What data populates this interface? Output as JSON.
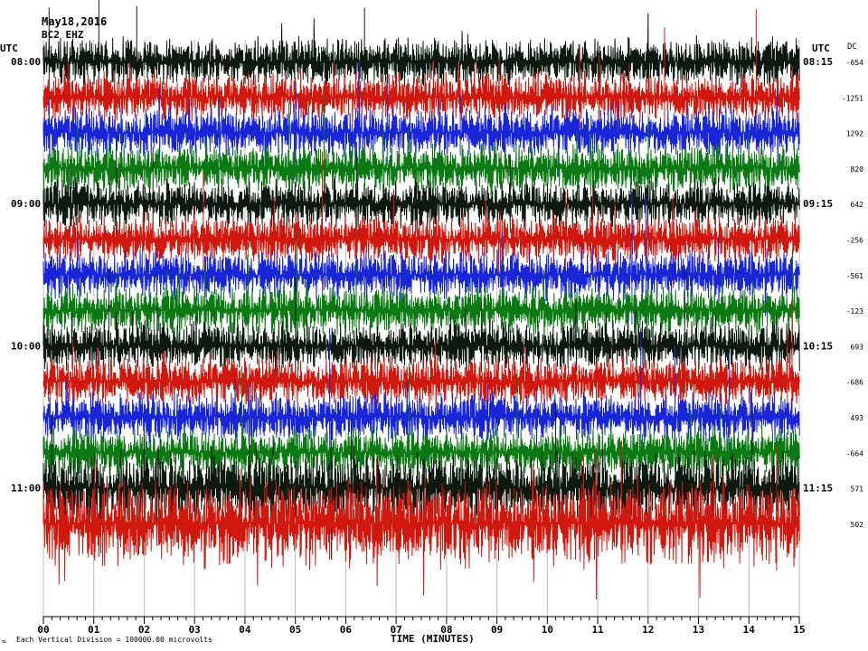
{
  "header": {
    "date": "May18,2016",
    "station_code": "BC2 EHZ",
    "left_timezone": "UTC",
    "right_timezone": "UTC",
    "dc_label": "DC"
  },
  "footer": {
    "scale_note": "Each Vertical Division = 100000.00 microvolts",
    "corner_mark": "≈"
  },
  "chart_data": {
    "type": "line",
    "title": "",
    "xlabel": "TIME (MINUTES)",
    "ylabel": "",
    "xlim": [
      0,
      15
    ],
    "x_ticks": [
      "00",
      "01",
      "02",
      "03",
      "04",
      "05",
      "06",
      "07",
      "08",
      "09",
      "10",
      "11",
      "12",
      "13",
      "14",
      "15"
    ],
    "trace_colors": [
      "#0e1a10",
      "#d0180f",
      "#1826d8",
      "#0b7a12"
    ],
    "grid": "vertical minute lines",
    "rows": [
      {
        "left_label": "08:00",
        "right_label": "08:15",
        "dc": "-654"
      },
      {
        "left_label": "",
        "right_label": "",
        "dc": "-1251"
      },
      {
        "left_label": "",
        "right_label": "",
        "dc": "1292"
      },
      {
        "left_label": "",
        "right_label": "",
        "dc": "820"
      },
      {
        "left_label": "09:00",
        "right_label": "09:15",
        "dc": "642"
      },
      {
        "left_label": "",
        "right_label": "",
        "dc": "-256"
      },
      {
        "left_label": "",
        "right_label": "",
        "dc": "-561"
      },
      {
        "left_label": "",
        "right_label": "",
        "dc": "-123"
      },
      {
        "left_label": "10:00",
        "right_label": "10:15",
        "dc": "693"
      },
      {
        "left_label": "",
        "right_label": "",
        "dc": "-686"
      },
      {
        "left_label": "",
        "right_label": "",
        "dc": "493"
      },
      {
        "left_label": "",
        "right_label": "",
        "dc": "-664"
      },
      {
        "left_label": "11:00",
        "right_label": "11:15",
        "dc": "571"
      },
      {
        "left_label": "",
        "right_label": "",
        "dc": "502"
      }
    ]
  }
}
